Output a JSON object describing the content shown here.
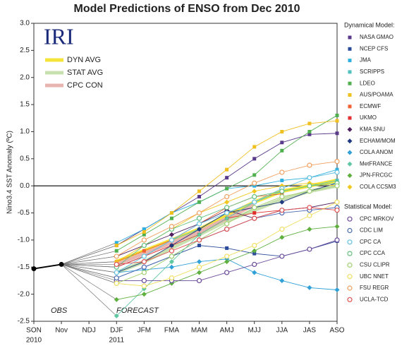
{
  "chart_data": {
    "type": "line",
    "title": "Model Predictions of ENSO from Dec 2010",
    "y_label": "Nino3.4 SST Anomaly (ºC)",
    "logo": "IRI",
    "annotations": [
      "OBS",
      "FORECAST"
    ],
    "categories": [
      "SON",
      "Nov",
      "NDJ",
      "DJF",
      "JFM",
      "FMA",
      "MAM",
      "AMJ",
      "MJJ",
      "JJA",
      "JAS",
      "ASO"
    ],
    "x_sublabels": [
      "2010",
      null,
      null,
      "2011",
      null,
      null,
      null,
      null,
      null,
      null,
      null,
      null
    ],
    "ylim": [
      -2.5,
      3.0
    ],
    "yticks": [
      {
        "value": -2.5,
        "label": "-2.5"
      },
      {
        "value": -2,
        "label": "-2.0"
      },
      {
        "value": -1.5,
        "label": "-1.5"
      },
      {
        "value": -1,
        "label": "-1.0"
      },
      {
        "value": -0.5,
        "label": "-0.5"
      },
      {
        "value": 0,
        "label": "0.0"
      },
      {
        "value": 0.5,
        "label": "0.5"
      },
      {
        "value": 1,
        "label": "1.0"
      },
      {
        "value": 1.5,
        "label": "1.5"
      },
      {
        "value": 2,
        "label": "2.0"
      },
      {
        "value": 2.5,
        "label": "2.5"
      },
      {
        "value": 3,
        "label": "3.0"
      }
    ],
    "obs": {
      "color": "#000000",
      "values": [
        -1.53,
        -1.45,
        null,
        null,
        null,
        null,
        null,
        null,
        null,
        null,
        null,
        null
      ]
    },
    "averages": [
      {
        "name": "DYN AVG",
        "color": "#f5e43a",
        "values": [
          null,
          null,
          null,
          -1.4,
          -1.2,
          -1.0,
          -0.8,
          -0.55,
          -0.3,
          -0.1,
          0.0,
          0.1
        ]
      },
      {
        "name": "STAT AVG",
        "color": "#c8e0b0",
        "values": [
          null,
          null,
          null,
          -1.6,
          -1.4,
          -1.15,
          -0.9,
          -0.65,
          -0.45,
          -0.25,
          -0.1,
          0.0
        ]
      },
      {
        "name": "CPC CON",
        "color": "#e8b4b0",
        "values": [
          null,
          null,
          null,
          -1.45,
          -1.25,
          -1.05,
          -0.85,
          -0.6,
          -0.35,
          null,
          null,
          null
        ]
      }
    ],
    "dynamical": {
      "title": "Dynamical Model:",
      "series": [
        {
          "name": "NASA GMAO",
          "color": "#5a3a8a",
          "marker": "square",
          "values": [
            null,
            null,
            null,
            -1.1,
            -0.8,
            -0.5,
            -0.2,
            0.15,
            0.5,
            0.8,
            0.95,
            0.97
          ]
        },
        {
          "name": "NCEP CFS",
          "color": "#2a4a9a",
          "marker": "square",
          "values": [
            null,
            null,
            null,
            -1.7,
            -1.5,
            -1.3,
            -1.1,
            -1.15,
            -1.25,
            -1.3,
            -1.17,
            -1.02
          ]
        },
        {
          "name": "JMA",
          "color": "#30b0e0",
          "marker": "square",
          "values": [
            null,
            null,
            null,
            -1.05,
            -0.8,
            -0.5,
            -0.3,
            -0.05,
            0.0,
            0.1,
            0.15,
            0.3
          ]
        },
        {
          "name": "SCRIPPS",
          "color": "#50c0c0",
          "marker": "square",
          "values": [
            null,
            null,
            null,
            -1.5,
            -1.3,
            -1.0,
            -0.8,
            -0.5,
            -0.3,
            -0.1,
            0.0,
            0.1
          ]
        },
        {
          "name": "LDEO",
          "color": "#50b050",
          "marker": "square",
          "values": [
            null,
            null,
            null,
            -1.2,
            -0.9,
            -0.6,
            -0.3,
            -0.05,
            0.2,
            0.65,
            1.0,
            1.3
          ]
        },
        {
          "name": "AUS/POAMA",
          "color": "#f0c020",
          "marker": "square",
          "values": [
            null,
            null,
            null,
            -1.1,
            -0.85,
            -0.5,
            -0.1,
            0.3,
            0.72,
            1.0,
            1.15,
            1.2
          ]
        },
        {
          "name": "ECMWF",
          "color": "#f06030",
          "marker": "square",
          "values": [
            null,
            null,
            null,
            -1.4,
            -1.2,
            -1.0,
            -0.7,
            -0.4,
            -0.2,
            -0.15,
            null,
            null
          ]
        },
        {
          "name": "UKMO",
          "color": "#e03030",
          "marker": "square",
          "values": [
            null,
            null,
            null,
            -1.5,
            -1.3,
            -1.1,
            -0.9,
            -0.6,
            -0.5,
            -0.45,
            null,
            null
          ]
        },
        {
          "name": "KMA SNU",
          "color": "#502060",
          "marker": "diamond",
          "values": [
            null,
            null,
            null,
            -1.3,
            -1.1,
            -0.9,
            -0.7,
            -0.45,
            -0.6,
            -0.45,
            -0.4,
            -0.3
          ]
        },
        {
          "name": "ECHAM/MOM",
          "color": "#203a80",
          "marker": "diamond",
          "values": [
            null,
            null,
            null,
            -1.6,
            -1.4,
            -1.1,
            -0.8,
            -0.5,
            -0.4,
            -0.3,
            -0.1,
            0.05
          ]
        },
        {
          "name": "COLA ANOM",
          "color": "#30a0d8",
          "marker": "diamond",
          "values": [
            null,
            null,
            null,
            -1.6,
            -1.55,
            -1.5,
            -1.4,
            -1.35,
            -1.6,
            -1.75,
            -1.88,
            -1.92
          ]
        },
        {
          "name": "MetFRANCE",
          "color": "#60c8a0",
          "marker": "diamond",
          "values": [
            null,
            null,
            null,
            -2.4,
            -1.9,
            -1.4,
            -0.9,
            -0.6,
            -0.3,
            null,
            null,
            null
          ]
        },
        {
          "name": "JPN-FRCGC",
          "color": "#60b040",
          "marker": "diamond",
          "values": [
            null,
            null,
            null,
            -2.1,
            -2.0,
            -1.8,
            -1.6,
            -1.4,
            -1.2,
            -0.95,
            -0.8,
            -0.75
          ]
        },
        {
          "name": "COLA CCSM3",
          "color": "#f0c820",
          "marker": "diamond",
          "values": [
            null,
            null,
            null,
            -1.4,
            -1.1,
            -0.8,
            -0.5,
            -0.3,
            -0.1,
            0.0,
            0.05,
            0.0
          ]
        }
      ]
    },
    "statistical": {
      "title": "Statistical Model:",
      "series": [
        {
          "name": "CPC MRKOV",
          "color": "#6a4a9a",
          "marker": "circle",
          "values": [
            null,
            null,
            null,
            -1.75,
            -1.75,
            -1.75,
            -1.75,
            -1.6,
            -1.45,
            -1.3,
            -1.17,
            -1.0
          ]
        },
        {
          "name": "CDC LIM",
          "color": "#4a6ab0",
          "marker": "circle",
          "values": [
            null,
            null,
            null,
            -1.7,
            -1.5,
            -1.3,
            -1.0,
            -0.8,
            -0.6,
            -0.5,
            -0.45,
            -0.4
          ]
        },
        {
          "name": "CPC CA",
          "color": "#60c0e0",
          "marker": "circle",
          "values": [
            null,
            null,
            null,
            -1.6,
            -1.3,
            -1.0,
            -0.7,
            -0.5,
            -0.3,
            -0.05,
            0.15,
            0.25
          ]
        },
        {
          "name": "CPC CCA",
          "color": "#60c080",
          "marker": "circle",
          "values": [
            null,
            null,
            null,
            -1.5,
            -1.1,
            -0.8,
            -0.6,
            -0.4,
            -0.2,
            -0.1,
            0.0,
            0.05
          ]
        },
        {
          "name": "CSU CLIPR",
          "color": "#a0d070",
          "marker": "circle",
          "values": [
            null,
            null,
            null,
            -1.8,
            -1.6,
            -1.3,
            -1.0,
            -0.7,
            -0.4,
            -0.2,
            -0.1,
            0.0
          ]
        },
        {
          "name": "UBC NNET",
          "color": "#f0e060",
          "marker": "circle",
          "values": [
            null,
            null,
            null,
            -1.8,
            -1.85,
            -1.7,
            -1.5,
            -1.3,
            -1.1,
            -0.8,
            -0.55,
            -0.3
          ]
        },
        {
          "name": "FSU REGR",
          "color": "#f0a060",
          "marker": "circle",
          "values": [
            null,
            null,
            null,
            -1.3,
            -1.0,
            -0.75,
            -0.5,
            -0.2,
            0.05,
            0.25,
            0.38,
            0.45
          ]
        },
        {
          "name": "UCLA-TCD",
          "color": "#e05050",
          "marker": "circle",
          "values": [
            null,
            null,
            null,
            -1.45,
            -1.4,
            -1.2,
            -1.0,
            -0.8,
            -0.6,
            -0.45,
            -0.4,
            -0.45
          ]
        }
      ]
    }
  }
}
